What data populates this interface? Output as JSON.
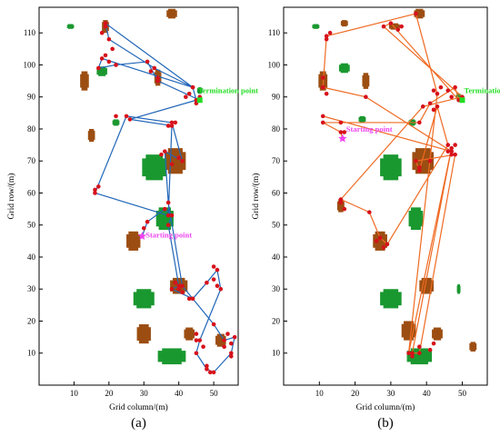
{
  "chart_data": [
    {
      "type": "scatter",
      "panel_label": "(a)",
      "xlabel": "Grid column/(m)",
      "ylabel": "Grid row/(m)",
      "xlim": [
        0,
        57
      ],
      "ylim": [
        0,
        118
      ],
      "xticks": [
        10,
        20,
        30,
        40,
        50
      ],
      "yticks": [
        10,
        20,
        30,
        40,
        50,
        60,
        70,
        80,
        90,
        100,
        110
      ],
      "annotations": [
        {
          "text": "Termination point",
          "x": 45,
          "y": 92,
          "color": "#22dd22"
        },
        {
          "text": "Starting point",
          "x": 30,
          "y": 47,
          "color": "#ee44ee"
        }
      ],
      "start_point": [
        29.5,
        46.5
      ],
      "end_point": [
        46,
        89
      ],
      "path": [
        [
          29.5,
          46.5
        ],
        [
          31,
          51
        ],
        [
          36,
          55
        ],
        [
          38,
          53
        ],
        [
          37,
          50
        ],
        [
          40,
          31
        ],
        [
          38,
          30
        ],
        [
          44,
          27
        ],
        [
          48,
          32
        ],
        [
          51,
          36
        ],
        [
          52,
          30
        ],
        [
          46,
          14
        ],
        [
          45,
          10
        ],
        [
          48,
          5
        ],
        [
          50,
          4
        ],
        [
          55,
          10
        ],
        [
          56,
          15
        ],
        [
          53,
          14
        ],
        [
          50,
          19
        ],
        [
          41,
          31
        ],
        [
          37,
          57
        ],
        [
          36,
          73
        ],
        [
          41,
          70
        ],
        [
          38,
          82
        ],
        [
          25,
          84
        ],
        [
          16,
          60
        ],
        [
          37,
          53
        ],
        [
          38,
          81
        ],
        [
          26,
          83
        ],
        [
          45,
          89
        ],
        [
          44,
          93
        ],
        [
          19,
          113
        ],
        [
          20,
          108
        ],
        [
          33,
          99
        ],
        [
          44,
          93
        ],
        [
          18,
          102
        ],
        [
          17,
          99
        ],
        [
          22,
          100
        ],
        [
          31,
          101
        ],
        [
          34,
          95
        ],
        [
          46,
          89
        ]
      ],
      "extra_points": [
        [
          19,
          112
        ],
        [
          18,
          110
        ],
        [
          21,
          105
        ],
        [
          19,
          103
        ],
        [
          20,
          101
        ],
        [
          32,
          98
        ],
        [
          34,
          96
        ],
        [
          42,
          90
        ],
        [
          43,
          91
        ],
        [
          46,
          90
        ],
        [
          45,
          88
        ],
        [
          39,
          82
        ],
        [
          37,
          81
        ],
        [
          40,
          71
        ],
        [
          38,
          69
        ],
        [
          35,
          72
        ],
        [
          17,
          62
        ],
        [
          16,
          61
        ],
        [
          30,
          49
        ],
        [
          39,
          32
        ],
        [
          40,
          30
        ],
        [
          41,
          29
        ],
        [
          43,
          27
        ],
        [
          50,
          33
        ],
        [
          50,
          37
        ],
        [
          51,
          31
        ],
        [
          45,
          16
        ],
        [
          45,
          14
        ],
        [
          47,
          12
        ],
        [
          49,
          4
        ],
        [
          48,
          6
        ],
        [
          54,
          16
        ],
        [
          55,
          13
        ],
        [
          53,
          12
        ],
        [
          55,
          9
        ],
        [
          22,
          84
        ]
      ],
      "obstacles": [
        {
          "kind": "brown",
          "cx": 38,
          "cy": 116,
          "w": 3,
          "h": 3
        },
        {
          "kind": "brown",
          "cx": 13,
          "cy": 95,
          "w": 2.5,
          "h": 6
        },
        {
          "kind": "brown",
          "cx": 15,
          "cy": 78,
          "w": 2,
          "h": 4
        },
        {
          "kind": "brown",
          "cx": 34,
          "cy": 96,
          "w": 2,
          "h": 5
        },
        {
          "kind": "brown",
          "cx": 39,
          "cy": 70,
          "w": 6,
          "h": 8
        },
        {
          "kind": "brown",
          "cx": 27,
          "cy": 45,
          "w": 4,
          "h": 6
        },
        {
          "kind": "brown",
          "cx": 40,
          "cy": 31,
          "w": 5,
          "h": 5
        },
        {
          "kind": "brown",
          "cx": 30,
          "cy": 16,
          "w": 4,
          "h": 6
        },
        {
          "kind": "brown",
          "cx": 43,
          "cy": 16,
          "w": 3,
          "h": 4
        },
        {
          "kind": "brown",
          "cx": 52,
          "cy": 14,
          "w": 3,
          "h": 4
        },
        {
          "kind": "brown",
          "cx": 19,
          "cy": 112,
          "w": 2,
          "h": 4
        },
        {
          "kind": "green",
          "cx": 9,
          "cy": 112,
          "w": 2,
          "h": 1.5
        },
        {
          "kind": "green",
          "cx": 18,
          "cy": 98,
          "w": 3,
          "h": 3
        },
        {
          "kind": "green",
          "cx": 22,
          "cy": 82,
          "w": 2,
          "h": 2
        },
        {
          "kind": "green",
          "cx": 33,
          "cy": 68,
          "w": 7,
          "h": 8
        },
        {
          "kind": "green",
          "cx": 36,
          "cy": 52,
          "w": 5,
          "h": 7
        },
        {
          "kind": "green",
          "cx": 30,
          "cy": 27,
          "w": 6,
          "h": 6
        },
        {
          "kind": "green",
          "cx": 38,
          "cy": 9,
          "w": 8,
          "h": 5
        },
        {
          "kind": "green",
          "cx": 46,
          "cy": 92,
          "w": 1.5,
          "h": 2
        }
      ]
    },
    {
      "type": "scatter",
      "panel_label": "(b)",
      "xlabel": "Grid column/(m)",
      "ylabel": "Grid row/(m)",
      "xlim": [
        0,
        57
      ],
      "ylim": [
        0,
        118
      ],
      "xticks": [
        10,
        20,
        30,
        40,
        50
      ],
      "yticks": [
        10,
        20,
        30,
        40,
        50,
        60,
        70,
        80,
        90,
        100,
        110
      ],
      "annotations": [
        {
          "text": "Termination point",
          "x": 50,
          "y": 92,
          "color": "#22dd22"
        },
        {
          "text": "Starting point",
          "x": 17,
          "y": 80,
          "color": "#ee44ee"
        }
      ],
      "start_point": [
        16.5,
        77
      ],
      "end_point": [
        50,
        89
      ],
      "path": [
        [
          16.5,
          77
        ],
        [
          16,
          79
        ],
        [
          11,
          82
        ],
        [
          38,
          82
        ],
        [
          41,
          88
        ],
        [
          48,
          93
        ],
        [
          49,
          89
        ],
        [
          30,
          113
        ],
        [
          28,
          112
        ],
        [
          50,
          90
        ],
        [
          39,
          87
        ],
        [
          16,
          58
        ],
        [
          24,
          54
        ],
        [
          27,
          46
        ],
        [
          29,
          44
        ],
        [
          46,
          75
        ],
        [
          43,
          87
        ],
        [
          38,
          67
        ],
        [
          37,
          70
        ],
        [
          48,
          72
        ],
        [
          38,
          10
        ],
        [
          36,
          10
        ],
        [
          47,
          74
        ],
        [
          35,
          10
        ],
        [
          43,
          91
        ],
        [
          37,
          116
        ],
        [
          12,
          109
        ],
        [
          11,
          93
        ],
        [
          23,
          90
        ],
        [
          47,
          73
        ],
        [
          11,
          84
        ]
      ],
      "extra_points": [
        [
          12,
          108
        ],
        [
          13,
          110
        ],
        [
          11,
          96
        ],
        [
          12,
          91
        ],
        [
          33,
          112
        ],
        [
          32,
          111
        ],
        [
          16,
          82
        ],
        [
          17,
          79
        ],
        [
          42,
          86
        ],
        [
          42,
          92
        ],
        [
          44,
          93
        ],
        [
          46,
          92
        ],
        [
          47,
          90
        ],
        [
          48,
          75
        ],
        [
          46,
          73
        ],
        [
          47,
          72
        ],
        [
          38,
          68
        ],
        [
          41,
          70
        ],
        [
          17,
          55
        ],
        [
          16,
          57
        ],
        [
          26,
          45
        ],
        [
          28,
          43
        ],
        [
          38,
          12
        ],
        [
          41,
          11
        ],
        [
          42,
          13
        ],
        [
          36,
          9
        ]
      ],
      "obstacles": [
        {
          "kind": "brown",
          "cx": 38,
          "cy": 116,
          "w": 3,
          "h": 3
        },
        {
          "kind": "brown",
          "cx": 11,
          "cy": 95,
          "w": 2.5,
          "h": 6
        },
        {
          "kind": "brown",
          "cx": 17,
          "cy": 113,
          "w": 2,
          "h": 2
        },
        {
          "kind": "brown",
          "cx": 31,
          "cy": 112,
          "w": 3,
          "h": 2
        },
        {
          "kind": "brown",
          "cx": 23,
          "cy": 95,
          "w": 2,
          "h": 5
        },
        {
          "kind": "brown",
          "cx": 39,
          "cy": 70,
          "w": 6,
          "h": 8
        },
        {
          "kind": "brown",
          "cx": 27,
          "cy": 45,
          "w": 4,
          "h": 6
        },
        {
          "kind": "brown",
          "cx": 40,
          "cy": 31,
          "w": 4,
          "h": 5
        },
        {
          "kind": "brown",
          "cx": 35,
          "cy": 17,
          "w": 4,
          "h": 6
        },
        {
          "kind": "brown",
          "cx": 43,
          "cy": 16,
          "w": 3,
          "h": 4
        },
        {
          "kind": "brown",
          "cx": 53,
          "cy": 12,
          "w": 2,
          "h": 3
        },
        {
          "kind": "brown",
          "cx": 16,
          "cy": 56,
          "w": 2,
          "h": 4
        },
        {
          "kind": "green",
          "cx": 9,
          "cy": 112,
          "w": 2,
          "h": 1.5
        },
        {
          "kind": "green",
          "cx": 17,
          "cy": 99,
          "w": 3,
          "h": 3
        },
        {
          "kind": "green",
          "cx": 22,
          "cy": 83,
          "w": 2,
          "h": 2
        },
        {
          "kind": "green",
          "cx": 30,
          "cy": 68,
          "w": 6,
          "h": 8
        },
        {
          "kind": "green",
          "cx": 37,
          "cy": 52,
          "w": 4,
          "h": 7
        },
        {
          "kind": "green",
          "cx": 30,
          "cy": 27,
          "w": 6,
          "h": 6
        },
        {
          "kind": "green",
          "cx": 38,
          "cy": 9,
          "w": 7,
          "h": 5
        },
        {
          "kind": "green",
          "cx": 49,
          "cy": 30,
          "w": 1,
          "h": 3
        },
        {
          "kind": "green",
          "cx": 36,
          "cy": 82,
          "w": 2,
          "h": 2
        },
        {
          "kind": "green",
          "cx": 49,
          "cy": 90,
          "w": 1.5,
          "h": 2
        }
      ]
    }
  ],
  "colors": {
    "path_a": "#2166b8",
    "path_b": "#ef6a22",
    "node": "#d7111a",
    "brown_obstacle": "#9c4e12",
    "green_obstacle": "#1a9830",
    "termination_text": "#22dd22",
    "starting_text": "#ee44ee"
  }
}
